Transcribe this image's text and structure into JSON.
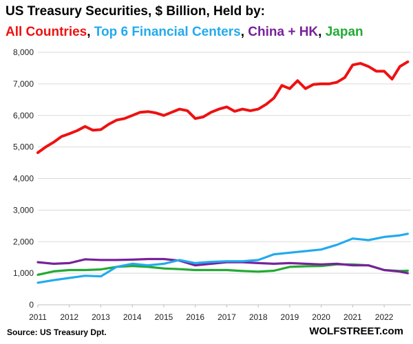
{
  "chart_data": {
    "type": "line",
    "title": "US Treasury Securities, $ Billion, Held by:",
    "xlabel": "",
    "ylabel": "",
    "xlim": [
      2011.0,
      2022.85
    ],
    "ylim": [
      0,
      8000
    ],
    "yticks": [
      0,
      1000,
      2000,
      3000,
      4000,
      5000,
      6000,
      7000,
      8000
    ],
    "ytick_labels": [
      "0",
      "1,000",
      "2,000",
      "3,000",
      "4,000",
      "5,000",
      "6,000",
      "7,000",
      "8,000"
    ],
    "xticks": [
      2011,
      2012,
      2013,
      2014,
      2015,
      2016,
      2017,
      2018,
      2019,
      2020,
      2021,
      2022
    ],
    "xtick_labels": [
      "2011",
      "2012",
      "2013",
      "2014",
      "2015",
      "2016",
      "2017",
      "2018",
      "2019",
      "2020",
      "2021",
      "2022"
    ],
    "grid": "horizontal",
    "legend_placement": "top",
    "series": [
      {
        "name": "All Countries",
        "color": "#ee1111",
        "x": [
          2011.0,
          2011.25,
          2011.5,
          2011.75,
          2012.0,
          2012.25,
          2012.5,
          2012.75,
          2013.0,
          2013.25,
          2013.5,
          2013.75,
          2014.0,
          2014.25,
          2014.5,
          2014.75,
          2015.0,
          2015.25,
          2015.5,
          2015.75,
          2016.0,
          2016.25,
          2016.5,
          2016.75,
          2017.0,
          2017.25,
          2017.5,
          2017.75,
          2018.0,
          2018.25,
          2018.5,
          2018.75,
          2019.0,
          2019.25,
          2019.5,
          2019.75,
          2020.0,
          2020.25,
          2020.5,
          2020.75,
          2021.0,
          2021.25,
          2021.5,
          2021.75,
          2022.0,
          2022.25,
          2022.5,
          2022.75
        ],
        "values": [
          4820,
          5000,
          5150,
          5330,
          5420,
          5520,
          5650,
          5530,
          5550,
          5720,
          5850,
          5900,
          6000,
          6100,
          6120,
          6080,
          6000,
          6100,
          6200,
          6150,
          5900,
          5950,
          6100,
          6200,
          6270,
          6130,
          6200,
          6150,
          6200,
          6350,
          6550,
          6950,
          6850,
          7100,
          6850,
          6980,
          7000,
          7000,
          7050,
          7200,
          7600,
          7650,
          7550,
          7400,
          7400,
          7150,
          7550,
          7700
        ]
      },
      {
        "name": "Top 6 Financial Centers",
        "color": "#22aaee",
        "x": [
          2011.0,
          2011.5,
          2012.0,
          2012.5,
          2013.0,
          2013.5,
          2014.0,
          2014.5,
          2015.0,
          2015.5,
          2016.0,
          2016.5,
          2017.0,
          2017.5,
          2018.0,
          2018.5,
          2019.0,
          2019.5,
          2020.0,
          2020.5,
          2021.0,
          2021.5,
          2022.0,
          2022.5,
          2022.75
        ],
        "values": [
          700,
          780,
          850,
          920,
          900,
          1200,
          1300,
          1250,
          1300,
          1420,
          1320,
          1360,
          1380,
          1380,
          1420,
          1600,
          1650,
          1700,
          1750,
          1900,
          2100,
          2050,
          2150,
          2200,
          2250
        ]
      },
      {
        "name": "China + HK",
        "color": "#772299",
        "x": [
          2011.0,
          2011.5,
          2012.0,
          2012.5,
          2013.0,
          2013.5,
          2014.0,
          2014.5,
          2015.0,
          2015.5,
          2016.0,
          2016.5,
          2017.0,
          2017.5,
          2018.0,
          2018.5,
          2019.0,
          2019.5,
          2020.0,
          2020.5,
          2021.0,
          2021.5,
          2022.0,
          2022.5,
          2022.75
        ],
        "values": [
          1350,
          1300,
          1320,
          1440,
          1420,
          1420,
          1430,
          1450,
          1450,
          1400,
          1250,
          1300,
          1350,
          1350,
          1320,
          1300,
          1320,
          1300,
          1280,
          1300,
          1250,
          1250,
          1100,
          1050,
          1000
        ]
      },
      {
        "name": "Japan",
        "color": "#22aa33",
        "x": [
          2011.0,
          2011.5,
          2012.0,
          2012.5,
          2013.0,
          2013.5,
          2014.0,
          2014.5,
          2015.0,
          2015.5,
          2016.0,
          2016.5,
          2017.0,
          2017.5,
          2018.0,
          2018.5,
          2019.0,
          2019.5,
          2020.0,
          2020.5,
          2021.0,
          2021.5,
          2022.0,
          2022.5,
          2022.75
        ],
        "values": [
          950,
          1060,
          1100,
          1100,
          1120,
          1200,
          1230,
          1200,
          1150,
          1130,
          1100,
          1100,
          1100,
          1070,
          1050,
          1080,
          1200,
          1220,
          1230,
          1280,
          1280,
          1250,
          1100,
          1070,
          1080
        ]
      }
    ]
  },
  "legend_separator": ", ",
  "footer": {
    "source": "Source: US Treasury  Dpt.",
    "brand": "WOLFSTREET.com"
  }
}
